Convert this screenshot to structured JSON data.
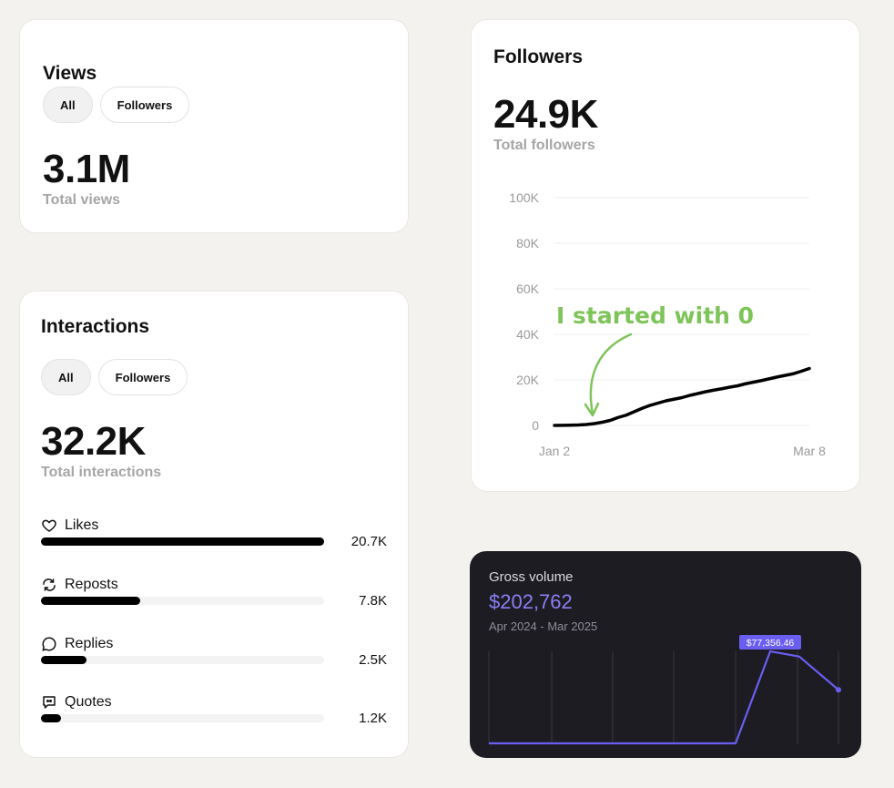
{
  "views": {
    "title": "Views",
    "filters": [
      {
        "label": "All",
        "active": true
      },
      {
        "label": "Followers",
        "active": false
      }
    ],
    "value": "3.1M",
    "value_label": "Total views"
  },
  "interactions": {
    "title": "Interactions",
    "filters": [
      {
        "label": "All",
        "active": true
      },
      {
        "label": "Followers",
        "active": false
      }
    ],
    "value": "32.2K",
    "value_label": "Total interactions",
    "metrics": [
      {
        "label": "Likes",
        "icon": "heart-icon",
        "value": "20.7K",
        "fraction": 1.0
      },
      {
        "label": "Reposts",
        "icon": "repost-icon",
        "value": "7.8K",
        "fraction": 0.35
      },
      {
        "label": "Replies",
        "icon": "reply-icon",
        "value": "2.5K",
        "fraction": 0.16
      },
      {
        "label": "Quotes",
        "icon": "quote-icon",
        "value": "1.2K",
        "fraction": 0.07
      }
    ]
  },
  "followers": {
    "title": "Followers",
    "value": "24.9K",
    "value_label": "Total followers",
    "annotation": "I started with 0",
    "annotation_color": "#7ec45a",
    "chart_data": {
      "type": "line",
      "y_ticks": [
        "0",
        "20K",
        "40K",
        "60K",
        "80K",
        "100K"
      ],
      "ylim": [
        0,
        100000
      ],
      "x_tick_labels": [
        "Jan 2",
        "Mar 8"
      ],
      "series": [
        {
          "values": [
            0,
            50,
            100,
            200,
            400,
            800,
            1400,
            2200,
            3500,
            4500,
            6000,
            7500,
            8800,
            9800,
            10800,
            11500,
            12200,
            13200,
            14000,
            14800,
            15500,
            16100,
            16800,
            17400,
            18300,
            19000,
            19700,
            20500,
            21300,
            22000,
            22700,
            23800,
            25000
          ]
        }
      ]
    }
  },
  "gross": {
    "title": "Gross volume",
    "amount": "$202,762",
    "range": "Apr 2024 - Mar 2025",
    "accent": "#6a5ef0",
    "tooltip": "$77,356.46",
    "chart_data": {
      "type": "line",
      "values": [
        0,
        0,
        0,
        0,
        0,
        0,
        0,
        0,
        0,
        0,
        0,
        77356.46,
        73000,
        45000
      ],
      "highlight_index": 11
    }
  }
}
